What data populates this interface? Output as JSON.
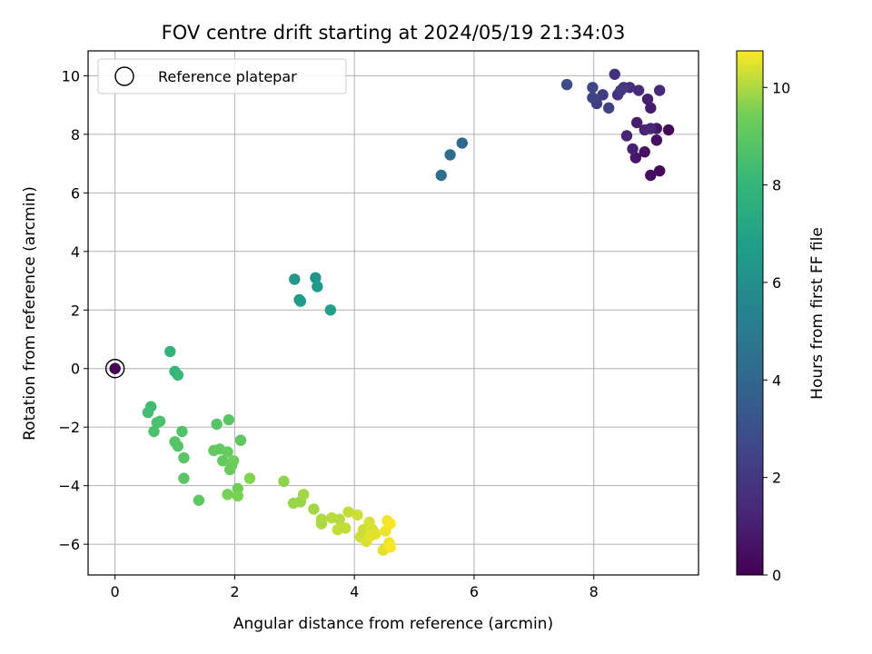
{
  "chart_data": {
    "type": "scatter",
    "title": "FOV centre drift starting at 2024/05/19 21:34:03",
    "xlabel": "Angular distance from reference (arcmin)",
    "ylabel": "Rotation from reference (arcmin)",
    "xlim": [
      -0.45,
      9.75
    ],
    "ylim": [
      -7.05,
      10.85
    ],
    "x_ticks": [
      0,
      2,
      4,
      6,
      8
    ],
    "y_ticks": [
      -6,
      -4,
      -2,
      0,
      2,
      4,
      6,
      8,
      10
    ],
    "x_tick_labels": [
      "0",
      "2",
      "4",
      "6",
      "8"
    ],
    "y_tick_labels": [
      "−6",
      "−4",
      "−2",
      "0",
      "2",
      "4",
      "6",
      "8",
      "10"
    ],
    "grid": true,
    "legend": {
      "position": "upper-left",
      "entries": [
        "Reference platepar"
      ]
    },
    "reference_point": {
      "x": 0,
      "y": 0,
      "c": 0
    },
    "colorbar": {
      "label": "Hours from first FF file",
      "range": [
        0,
        10.75
      ],
      "ticks": [
        0,
        2,
        4,
        6,
        8,
        10
      ],
      "tick_labels": [
        "0",
        "2",
        "4",
        "6",
        "8",
        "10"
      ],
      "colormap": "viridis"
    },
    "series": [
      {
        "points": [
          [
            9.25,
            8.15,
            0.2
          ],
          [
            9.1,
            6.75,
            0.3
          ],
          [
            8.95,
            6.6,
            0.4
          ],
          [
            9.05,
            7.8,
            0.5
          ],
          [
            8.85,
            7.4,
            0.6
          ],
          [
            8.7,
            7.2,
            0.7
          ],
          [
            9.05,
            8.2,
            0.8
          ],
          [
            8.95,
            8.9,
            0.9
          ],
          [
            8.9,
            9.2,
            1.0
          ],
          [
            8.72,
            8.4,
            1.0
          ],
          [
            8.65,
            7.5,
            1.1
          ],
          [
            8.55,
            7.95,
            1.2
          ],
          [
            8.85,
            8.15,
            1.2
          ],
          [
            8.95,
            8.2,
            1.3
          ],
          [
            9.1,
            9.5,
            1.4
          ],
          [
            8.75,
            9.5,
            1.5
          ],
          [
            8.6,
            9.6,
            1.6
          ],
          [
            8.35,
            10.05,
            1.7
          ],
          [
            8.4,
            9.35,
            1.8
          ],
          [
            8.5,
            9.6,
            1.9
          ],
          [
            8.45,
            9.5,
            2.0
          ],
          [
            8.15,
            9.35,
            2.2
          ],
          [
            8.05,
            9.05,
            2.3
          ],
          [
            8.25,
            8.9,
            2.4
          ],
          [
            7.98,
            9.25,
            2.5
          ],
          [
            7.98,
            9.6,
            2.6
          ],
          [
            7.55,
            9.7,
            2.8
          ],
          [
            5.8,
            7.7,
            4.1
          ],
          [
            5.6,
            7.3,
            4.3
          ],
          [
            5.45,
            6.6,
            4.4
          ],
          [
            3.35,
            3.1,
            6.3
          ],
          [
            3.0,
            3.05,
            6.4
          ],
          [
            3.08,
            2.35,
            6.5
          ],
          [
            3.38,
            2.8,
            6.5
          ],
          [
            3.1,
            2.3,
            6.6
          ],
          [
            3.6,
            2.0,
            6.8
          ],
          [
            0.92,
            0.58,
            7.9
          ],
          [
            1.0,
            -0.1,
            8.0
          ],
          [
            1.05,
            -0.22,
            8.1
          ],
          [
            0.6,
            -1.3,
            8.3
          ],
          [
            0.55,
            -1.5,
            8.4
          ],
          [
            0.75,
            -1.8,
            8.5
          ],
          [
            0.7,
            -1.85,
            8.6
          ],
          [
            0.65,
            -2.15,
            8.6
          ],
          [
            1.12,
            -2.15,
            8.7
          ],
          [
            1.0,
            -2.5,
            8.8
          ],
          [
            1.05,
            -2.65,
            8.8
          ],
          [
            1.15,
            -3.05,
            8.9
          ],
          [
            1.15,
            -3.75,
            8.9
          ],
          [
            1.4,
            -4.5,
            9.0
          ],
          [
            1.7,
            -1.9,
            8.8
          ],
          [
            1.9,
            -1.75,
            8.9
          ],
          [
            2.1,
            -2.45,
            9.0
          ],
          [
            1.65,
            -2.8,
            9.1
          ],
          [
            1.75,
            -2.75,
            9.1
          ],
          [
            1.8,
            -3.15,
            9.2
          ],
          [
            1.88,
            -2.85,
            9.2
          ],
          [
            1.95,
            -3.3,
            9.3
          ],
          [
            1.92,
            -3.45,
            9.3
          ],
          [
            1.98,
            -3.15,
            9.4
          ],
          [
            2.05,
            -4.1,
            9.4
          ],
          [
            2.05,
            -4.35,
            9.5
          ],
          [
            1.88,
            -4.3,
            9.5
          ],
          [
            2.25,
            -3.75,
            9.6
          ],
          [
            2.82,
            -3.85,
            9.7
          ],
          [
            2.98,
            -4.6,
            9.8
          ],
          [
            3.1,
            -4.55,
            9.8
          ],
          [
            3.15,
            -4.3,
            9.9
          ],
          [
            3.32,
            -4.8,
            9.9
          ],
          [
            3.45,
            -5.3,
            10.0
          ],
          [
            3.45,
            -5.15,
            10.0
          ],
          [
            3.62,
            -5.1,
            10.1
          ],
          [
            3.75,
            -5.15,
            10.1
          ],
          [
            3.72,
            -5.5,
            10.2
          ],
          [
            3.85,
            -5.45,
            10.2
          ],
          [
            3.9,
            -4.9,
            10.2
          ],
          [
            4.05,
            -5.0,
            10.3
          ],
          [
            4.1,
            -5.75,
            10.3
          ],
          [
            4.15,
            -5.5,
            10.3
          ],
          [
            4.2,
            -5.9,
            10.4
          ],
          [
            4.25,
            -5.25,
            10.4
          ],
          [
            4.3,
            -5.5,
            10.4
          ],
          [
            4.35,
            -5.65,
            10.5
          ],
          [
            4.28,
            -5.7,
            10.5
          ],
          [
            4.48,
            -6.2,
            10.5
          ],
          [
            4.52,
            -5.55,
            10.6
          ],
          [
            4.55,
            -5.2,
            10.6
          ],
          [
            4.58,
            -5.95,
            10.6
          ],
          [
            4.6,
            -5.3,
            10.7
          ],
          [
            4.6,
            -6.1,
            10.7
          ]
        ]
      }
    ]
  }
}
